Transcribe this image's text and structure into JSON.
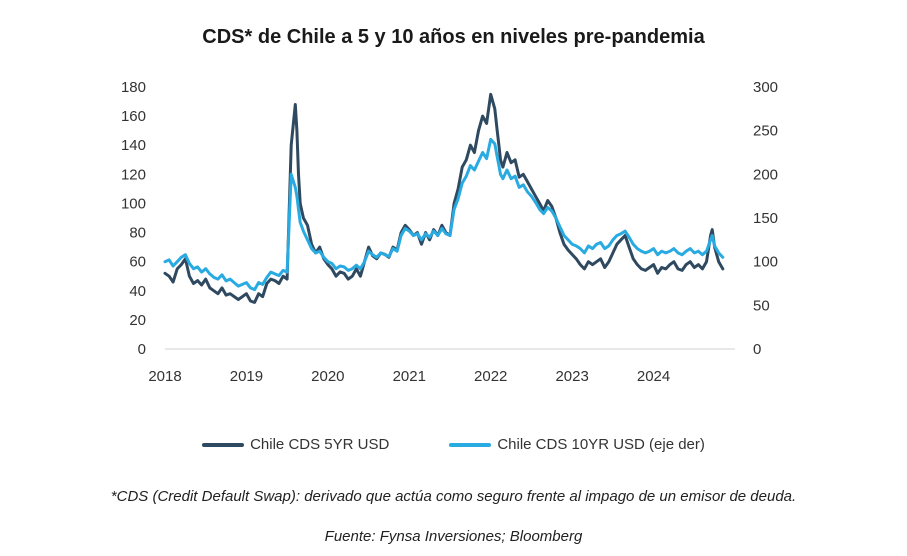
{
  "chart_data": {
    "type": "line",
    "title": "CDS* de Chile a 5 y 10 años en niveles pre-pandemia",
    "x_ticks": [
      "2018",
      "2019",
      "2020",
      "2021",
      "2022",
      "2023",
      "2024"
    ],
    "y_left": {
      "ylim": [
        0,
        180
      ],
      "ticks": [
        "0",
        "20",
        "40",
        "60",
        "80",
        "100",
        "120",
        "140",
        "160",
        "180"
      ]
    },
    "y_right": {
      "ylim": [
        0,
        300
      ],
      "ticks": [
        "0",
        "50",
        "100",
        "150",
        "200",
        "250",
        "300"
      ]
    },
    "legend_position": "bottom",
    "series": [
      {
        "name": "Chile CDS 5YR USD",
        "axis": "left",
        "color": "#2f4a60",
        "x": [
          2018.0,
          2018.05,
          2018.1,
          2018.15,
          2018.2,
          2018.25,
          2018.3,
          2018.35,
          2018.4,
          2018.45,
          2018.5,
          2018.55,
          2018.6,
          2018.65,
          2018.7,
          2018.75,
          2018.8,
          2018.85,
          2018.9,
          2018.95,
          2019.0,
          2019.05,
          2019.1,
          2019.15,
          2019.2,
          2019.25,
          2019.3,
          2019.35,
          2019.4,
          2019.45,
          2019.5,
          2019.55,
          2019.6,
          2019.62,
          2019.64,
          2019.66,
          2019.68,
          2019.7,
          2019.75,
          2019.8,
          2019.85,
          2019.9,
          2019.95,
          2020.0,
          2020.05,
          2020.1,
          2020.15,
          2020.2,
          2020.25,
          2020.3,
          2020.35,
          2020.4,
          2020.45,
          2020.5,
          2020.55,
          2020.6,
          2020.65,
          2020.7,
          2020.75,
          2020.8,
          2020.85,
          2020.9,
          2020.95,
          2021.0,
          2021.05,
          2021.1,
          2021.15,
          2021.2,
          2021.25,
          2021.3,
          2021.35,
          2021.4,
          2021.45,
          2021.5,
          2021.55,
          2021.6,
          2021.65,
          2021.7,
          2021.75,
          2021.8,
          2021.85,
          2021.9,
          2021.95,
          2022.0,
          2022.05,
          2022.08,
          2022.1,
          2022.12,
          2022.15,
          2022.2,
          2022.25,
          2022.3,
          2022.35,
          2022.4,
          2022.45,
          2022.5,
          2022.55,
          2022.6,
          2022.65,
          2022.7,
          2022.75,
          2022.8,
          2022.85,
          2022.9,
          2022.95,
          2023.0,
          2023.05,
          2023.1,
          2023.15,
          2023.2,
          2023.25,
          2023.3,
          2023.35,
          2023.4,
          2023.45,
          2023.5,
          2023.55,
          2023.6,
          2023.65,
          2023.7,
          2023.75,
          2023.8,
          2023.85,
          2023.9,
          2023.95,
          2024.0,
          2024.05,
          2024.1,
          2024.15,
          2024.2,
          2024.25,
          2024.3,
          2024.35,
          2024.4,
          2024.45,
          2024.5,
          2024.55,
          2024.6,
          2024.65,
          2024.7,
          2024.72,
          2024.75,
          2024.8,
          2024.85
        ],
        "values": [
          52,
          50,
          46,
          55,
          58,
          62,
          50,
          45,
          47,
          44,
          48,
          42,
          40,
          38,
          42,
          37,
          38,
          36,
          34,
          36,
          38,
          33,
          32,
          38,
          36,
          45,
          48,
          47,
          45,
          50,
          48,
          140,
          168,
          150,
          120,
          100,
          95,
          90,
          85,
          72,
          66,
          70,
          62,
          58,
          55,
          50,
          53,
          52,
          48,
          50,
          55,
          50,
          60,
          70,
          64,
          62,
          66,
          65,
          63,
          70,
          68,
          80,
          85,
          82,
          78,
          80,
          72,
          80,
          75,
          82,
          78,
          85,
          80,
          78,
          100,
          110,
          125,
          130,
          140,
          135,
          150,
          160,
          155,
          175,
          165,
          150,
          140,
          130,
          125,
          135,
          128,
          130,
          118,
          120,
          115,
          110,
          105,
          100,
          95,
          102,
          98,
          90,
          80,
          72,
          68,
          65,
          62,
          58,
          55,
          60,
          58,
          60,
          62,
          56,
          60,
          66,
          72,
          75,
          78,
          70,
          62,
          58,
          55,
          54,
          56,
          58,
          52,
          56,
          55,
          58,
          60,
          55,
          54,
          58,
          60,
          56,
          58,
          55,
          60,
          78,
          82,
          70,
          60,
          55
        ]
      },
      {
        "name": "Chile CDS 10YR USD (eje der)",
        "axis": "right",
        "color": "#29abe2",
        "x": [
          2018.0,
          2018.05,
          2018.1,
          2018.15,
          2018.2,
          2018.25,
          2018.3,
          2018.35,
          2018.4,
          2018.45,
          2018.5,
          2018.55,
          2018.6,
          2018.65,
          2018.7,
          2018.75,
          2018.8,
          2018.85,
          2018.9,
          2018.95,
          2019.0,
          2019.05,
          2019.1,
          2019.15,
          2019.2,
          2019.25,
          2019.3,
          2019.35,
          2019.4,
          2019.45,
          2019.5,
          2019.55,
          2019.6,
          2019.62,
          2019.64,
          2019.66,
          2019.68,
          2019.7,
          2019.75,
          2019.8,
          2019.85,
          2019.9,
          2019.95,
          2020.0,
          2020.05,
          2020.1,
          2020.15,
          2020.2,
          2020.25,
          2020.3,
          2020.35,
          2020.4,
          2020.45,
          2020.5,
          2020.55,
          2020.6,
          2020.65,
          2020.7,
          2020.75,
          2020.8,
          2020.85,
          2020.9,
          2020.95,
          2021.0,
          2021.05,
          2021.1,
          2021.15,
          2021.2,
          2021.25,
          2021.3,
          2021.35,
          2021.4,
          2021.45,
          2021.5,
          2021.55,
          2021.6,
          2021.65,
          2021.7,
          2021.75,
          2021.8,
          2021.85,
          2021.9,
          2021.95,
          2022.0,
          2022.05,
          2022.08,
          2022.1,
          2022.12,
          2022.15,
          2022.2,
          2022.25,
          2022.3,
          2022.35,
          2022.4,
          2022.45,
          2022.5,
          2022.55,
          2022.6,
          2022.65,
          2022.7,
          2022.75,
          2022.8,
          2022.85,
          2022.9,
          2022.95,
          2023.0,
          2023.05,
          2023.1,
          2023.15,
          2023.2,
          2023.25,
          2023.3,
          2023.35,
          2023.4,
          2023.45,
          2023.5,
          2023.55,
          2023.6,
          2023.65,
          2023.7,
          2023.75,
          2023.8,
          2023.85,
          2023.9,
          2023.95,
          2024.0,
          2024.05,
          2024.1,
          2024.15,
          2024.2,
          2024.25,
          2024.3,
          2024.35,
          2024.4,
          2024.45,
          2024.5,
          2024.55,
          2024.6,
          2024.65,
          2024.7,
          2024.72,
          2024.75,
          2024.8,
          2024.85
        ],
        "values": [
          100,
          102,
          95,
          100,
          105,
          108,
          98,
          92,
          94,
          88,
          92,
          86,
          82,
          80,
          85,
          78,
          80,
          76,
          72,
          74,
          76,
          70,
          68,
          76,
          74,
          82,
          88,
          86,
          84,
          90,
          88,
          200,
          185,
          175,
          160,
          145,
          140,
          135,
          125,
          115,
          110,
          112,
          105,
          100,
          98,
          92,
          95,
          94,
          90,
          92,
          96,
          92,
          100,
          112,
          108,
          105,
          110,
          108,
          106,
          115,
          112,
          130,
          138,
          135,
          130,
          132,
          125,
          132,
          128,
          135,
          130,
          138,
          132,
          130,
          160,
          172,
          190,
          198,
          210,
          205,
          215,
          225,
          218,
          240,
          235,
          220,
          210,
          200,
          195,
          205,
          195,
          198,
          185,
          188,
          180,
          175,
          168,
          160,
          155,
          162,
          158,
          150,
          140,
          130,
          125,
          120,
          118,
          115,
          110,
          118,
          115,
          120,
          122,
          115,
          118,
          125,
          130,
          132,
          135,
          128,
          120,
          115,
          112,
          110,
          112,
          115,
          108,
          112,
          110,
          112,
          115,
          110,
          108,
          112,
          115,
          110,
          112,
          108,
          112,
          125,
          130,
          118,
          110,
          105
        ]
      }
    ]
  },
  "footnote": "*CDS (Credit Default Swap): derivado que actúa como seguro frente al impago de un emisor de deuda.",
  "source": "Fuente: Fynsa Inversiones; Bloomberg"
}
